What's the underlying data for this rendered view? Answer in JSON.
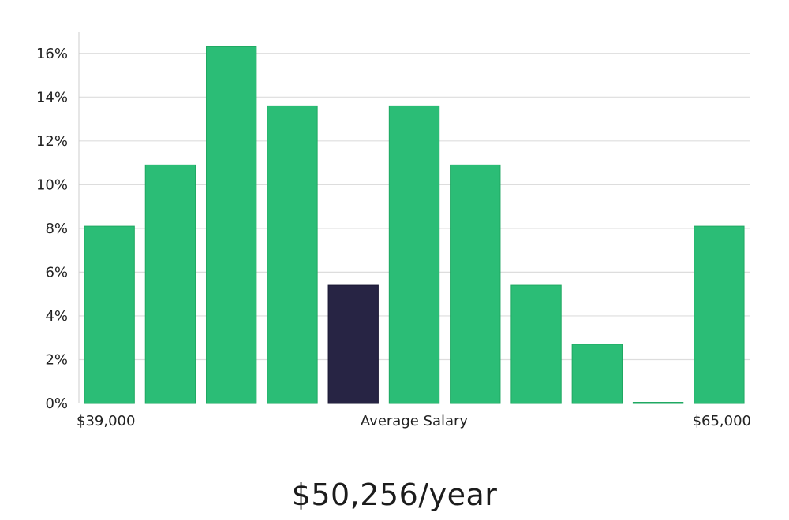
{
  "chart_data": {
    "type": "bar",
    "title": "",
    "xlabel": "Average Salary",
    "ylabel": "",
    "ylim": [
      0,
      17
    ],
    "yticks": [
      0,
      2,
      4,
      6,
      8,
      10,
      12,
      14,
      16
    ],
    "ytick_suffix": "%",
    "x_min_label": "$39,000",
    "x_max_label": "$65,000",
    "values": [
      8.1,
      10.9,
      16.3,
      13.6,
      5.4,
      13.6,
      10.9,
      5.4,
      2.7,
      0.0,
      8.1
    ],
    "highlight_index": 4,
    "colors": {
      "bar": "#2bbd76",
      "bar_edge": "#1fa862",
      "highlight": "#272444",
      "grid": "#dddddd",
      "axis": "#cccccc"
    }
  },
  "summary": {
    "salary_label": "$50,256/year"
  }
}
